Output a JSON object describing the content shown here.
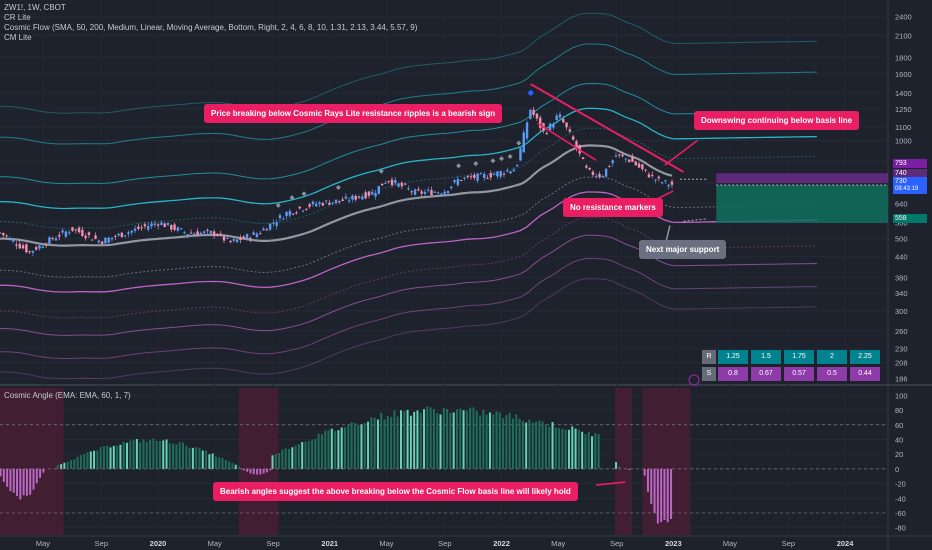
{
  "header": {
    "symbol_line": "ZW1!, 1W, CBOT",
    "indicator_1": "CR Lite",
    "indicator_2": "Cosmic Flow (SMA, 50, 200, Medium, Linear, Moving Average, Bottom, Right, 2, 4, 6, 8, 10, 1.31, 2.13, 3.44, 5.57, 9)",
    "indicator_3": "CM Lite",
    "pane2_title": "Cosmic Angle (EMA: EMA, 60, 1, 7)"
  },
  "callouts": {
    "c1": "Price breaking below Cosmic Rays Lite resistance ripples is a bearish sign",
    "c2": "Downswing continuing below basis line",
    "c3": "No resistance markers",
    "c4": "Next major support",
    "c5": "Bearish angles suggest the above breaking below the Cosmic Flow basis line will likely hold"
  },
  "price_tags": {
    "t1": "793",
    "t2": "740",
    "t3": "730",
    "t3_timer": "08:43:19",
    "t4": "558"
  },
  "rs_table": {
    "r_label": "R",
    "s_label": "S",
    "r_values": [
      "1.25",
      "1.5",
      "1.75",
      "2",
      "2.25"
    ],
    "s_values": [
      "0.8",
      "0.67",
      "0.57",
      "0.5",
      "0.44"
    ]
  },
  "colors": {
    "background": "#1e222d",
    "up_candle": "#5b9cf6",
    "down_candle": "#f48fb1",
    "basis_line": "#b2b5be",
    "teal_band": "#26c6da",
    "purple_band": "#ce6bd8",
    "callout": "#e91e63",
    "hist_green": "#1e6e5a",
    "hist_green_light": "#66d2b4",
    "hist_purple": "#ba68c8",
    "highlight_band": "#4a1e32"
  },
  "chart_data": [
    {
      "type": "candlestick",
      "scale": "log",
      "y_ticks": [
        2400,
        2100,
        1800,
        1600,
        1400,
        1250,
        1100,
        1000,
        860,
        740,
        640,
        560,
        500,
        440,
        380,
        340,
        300,
        260,
        230,
        208,
        186
      ],
      "x_ticks": [
        "May",
        "Sep",
        "2020",
        "May",
        "Sep",
        "2021",
        "May",
        "Sep",
        "2022",
        "May",
        "Sep",
        "2023",
        "May",
        "Sep",
        "2024"
      ],
      "ylim": [
        180,
        2700
      ],
      "series": [
        {
          "name": "ZW1!",
          "close_path": [
            [
              "2019-02",
              520
            ],
            [
              "2019-04",
              455
            ],
            [
              "2019-06",
              510
            ],
            [
              "2019-07",
              535
            ],
            [
              "2019-09",
              490
            ],
            [
              "2019-11",
              525
            ],
            [
              "2020-01",
              560
            ],
            [
              "2020-03",
              520
            ],
            [
              "2020-05",
              520
            ],
            [
              "2020-06",
              485
            ],
            [
              "2020-08",
              520
            ],
            [
              "2020-10",
              600
            ],
            [
              "2020-12",
              640
            ],
            [
              "2021-02",
              655
            ],
            [
              "2021-04",
              690
            ],
            [
              "2021-05",
              760
            ],
            [
              "2021-07",
              690
            ],
            [
              "2021-09",
              700
            ],
            [
              "2021-10",
              760
            ],
            [
              "2021-12",
              780
            ],
            [
              "2022-02",
              820
            ],
            [
              "2022-03",
              1250
            ],
            [
              "2022-04",
              1050
            ],
            [
              "2022-05",
              1200
            ],
            [
              "2022-06",
              1000
            ],
            [
              "2022-07",
              800
            ],
            [
              "2022-08",
              780
            ],
            [
              "2022-09",
              900
            ],
            [
              "2022-10",
              870
            ],
            [
              "2022-11",
              800
            ],
            [
              "2022-12",
              750
            ],
            [
              "2023-01",
              730
            ]
          ]
        }
      ],
      "price_labels": [
        793,
        740,
        730,
        558
      ],
      "projection_box": {
        "top": 740,
        "mid": 730,
        "bottom": 558
      }
    },
    {
      "type": "histogram",
      "y_ticks": [
        100,
        80,
        60,
        40,
        20,
        0,
        -20,
        -40,
        -60,
        -80
      ],
      "ylim": [
        -90,
        110
      ],
      "x_ticks": [
        "May",
        "Sep",
        "2020",
        "May",
        "Sep",
        "2021",
        "May",
        "Sep",
        "2022",
        "May",
        "Sep",
        "2023",
        "May",
        "Sep",
        "2024"
      ],
      "segments": [
        {
          "from": "2019-02",
          "to": "2019-05",
          "start": -10,
          "peak": -40,
          "end": -5
        },
        {
          "from": "2019-06",
          "to": "2020-07",
          "start": 5,
          "peak": 40,
          "end": 0
        },
        {
          "from": "2020-07",
          "to": "2020-09",
          "start": -2,
          "peak": -8,
          "end": 0
        },
        {
          "from": "2020-09",
          "to": "2022-08",
          "start": 20,
          "peak": 82,
          "end": 45
        },
        {
          "from": "2022-09",
          "to": "2022-10",
          "start": 10,
          "peak": 0,
          "end": -2
        },
        {
          "from": "2022-11",
          "to": "2023-01",
          "start": -10,
          "peak": -72,
          "end": -72
        }
      ]
    }
  ]
}
